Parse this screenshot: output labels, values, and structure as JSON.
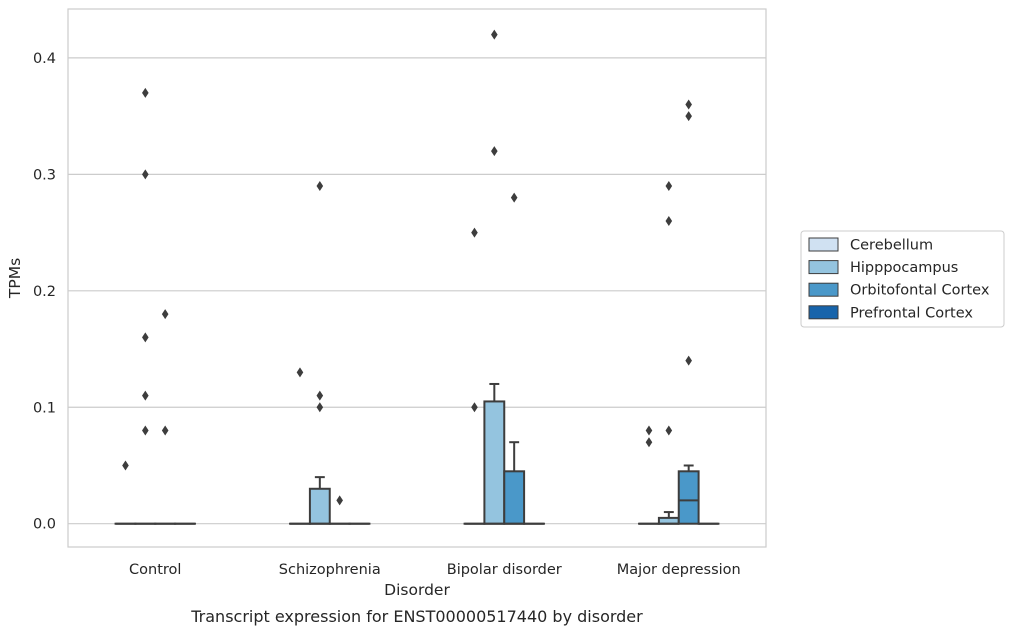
{
  "caption": "Transcript expression for ENST00000517440 by disorder",
  "chart_data": {
    "type": "box",
    "xlabel": "Disorder",
    "ylabel": "TPMs",
    "categories": [
      "Control",
      "Schizophrenia",
      "Bipolar disorder",
      "Major depression"
    ],
    "ylim": [
      -0.02,
      0.442
    ],
    "yticks": [
      0.0,
      0.1,
      0.2,
      0.3,
      0.4
    ],
    "ytick_labels": [
      "0.0",
      "0.1",
      "0.2",
      "0.3",
      "0.4"
    ],
    "grid": "horizontal",
    "legend_position": "right",
    "series": [
      {
        "name": "Cerebellum",
        "color": "#d0e1f2",
        "boxes": [
          {
            "category": "Control",
            "q1": 0,
            "median": 0,
            "q3": 0,
            "whisker_low": 0,
            "whisker_high": 0,
            "outliers": [
              0.05
            ]
          },
          {
            "category": "Schizophrenia",
            "q1": 0,
            "median": 0,
            "q3": 0,
            "whisker_low": 0,
            "whisker_high": 0,
            "outliers": [
              0.13
            ]
          },
          {
            "category": "Bipolar disorder",
            "q1": 0,
            "median": 0,
            "q3": 0,
            "whisker_low": 0,
            "whisker_high": 0,
            "outliers": [
              0.1,
              0.25
            ]
          },
          {
            "category": "Major depression",
            "q1": 0,
            "median": 0,
            "q3": 0,
            "whisker_low": 0,
            "whisker_high": 0,
            "outliers": [
              0.07,
              0.08
            ]
          }
        ]
      },
      {
        "name": "Hipppocampus",
        "color": "#94c4df",
        "boxes": [
          {
            "category": "Control",
            "q1": 0,
            "median": 0,
            "q3": 0,
            "whisker_low": 0,
            "whisker_high": 0,
            "outliers": [
              0.08,
              0.11,
              0.16,
              0.3,
              0.37
            ]
          },
          {
            "category": "Schizophrenia",
            "q1": 0,
            "median": 0,
            "q3": 0.03,
            "whisker_low": 0,
            "whisker_high": 0.04,
            "outliers": [
              0.1,
              0.11,
              0.29
            ]
          },
          {
            "category": "Bipolar disorder",
            "q1": 0,
            "median": 0,
            "q3": 0.105,
            "whisker_low": 0,
            "whisker_high": 0.12,
            "outliers": [
              0.32,
              0.42
            ]
          },
          {
            "category": "Major depression",
            "q1": 0,
            "median": 0,
            "q3": 0.005,
            "whisker_low": 0,
            "whisker_high": 0.01,
            "outliers": [
              0.08,
              0.26,
              0.29
            ]
          }
        ]
      },
      {
        "name": "Orbitofontal Cortex",
        "color": "#4a98c9",
        "boxes": [
          {
            "category": "Control",
            "q1": 0,
            "median": 0,
            "q3": 0,
            "whisker_low": 0,
            "whisker_high": 0,
            "outliers": [
              0.08,
              0.18
            ]
          },
          {
            "category": "Schizophrenia",
            "q1": 0,
            "median": 0,
            "q3": 0,
            "whisker_low": 0,
            "whisker_high": 0,
            "outliers": [
              0.02
            ]
          },
          {
            "category": "Bipolar disorder",
            "q1": 0,
            "median": 0,
            "q3": 0.045,
            "whisker_low": 0,
            "whisker_high": 0.07,
            "outliers": [
              0.28
            ]
          },
          {
            "category": "Major depression",
            "q1": 0,
            "median": 0.02,
            "q3": 0.045,
            "whisker_low": 0,
            "whisker_high": 0.05,
            "outliers": [
              0.14,
              0.35,
              0.36
            ]
          }
        ]
      },
      {
        "name": "Prefrontal Cortex",
        "color": "#1764ab",
        "boxes": [
          {
            "category": "Control",
            "q1": 0,
            "median": 0,
            "q3": 0,
            "whisker_low": 0,
            "whisker_high": 0,
            "outliers": []
          },
          {
            "category": "Schizophrenia",
            "q1": 0,
            "median": 0,
            "q3": 0,
            "whisker_low": 0,
            "whisker_high": 0,
            "outliers": []
          },
          {
            "category": "Bipolar disorder",
            "q1": 0,
            "median": 0,
            "q3": 0,
            "whisker_low": 0,
            "whisker_high": 0,
            "outliers": []
          },
          {
            "category": "Major depression",
            "q1": 0,
            "median": 0,
            "q3": 0,
            "whisker_low": 0,
            "whisker_high": 0,
            "outliers": []
          }
        ]
      }
    ]
  }
}
